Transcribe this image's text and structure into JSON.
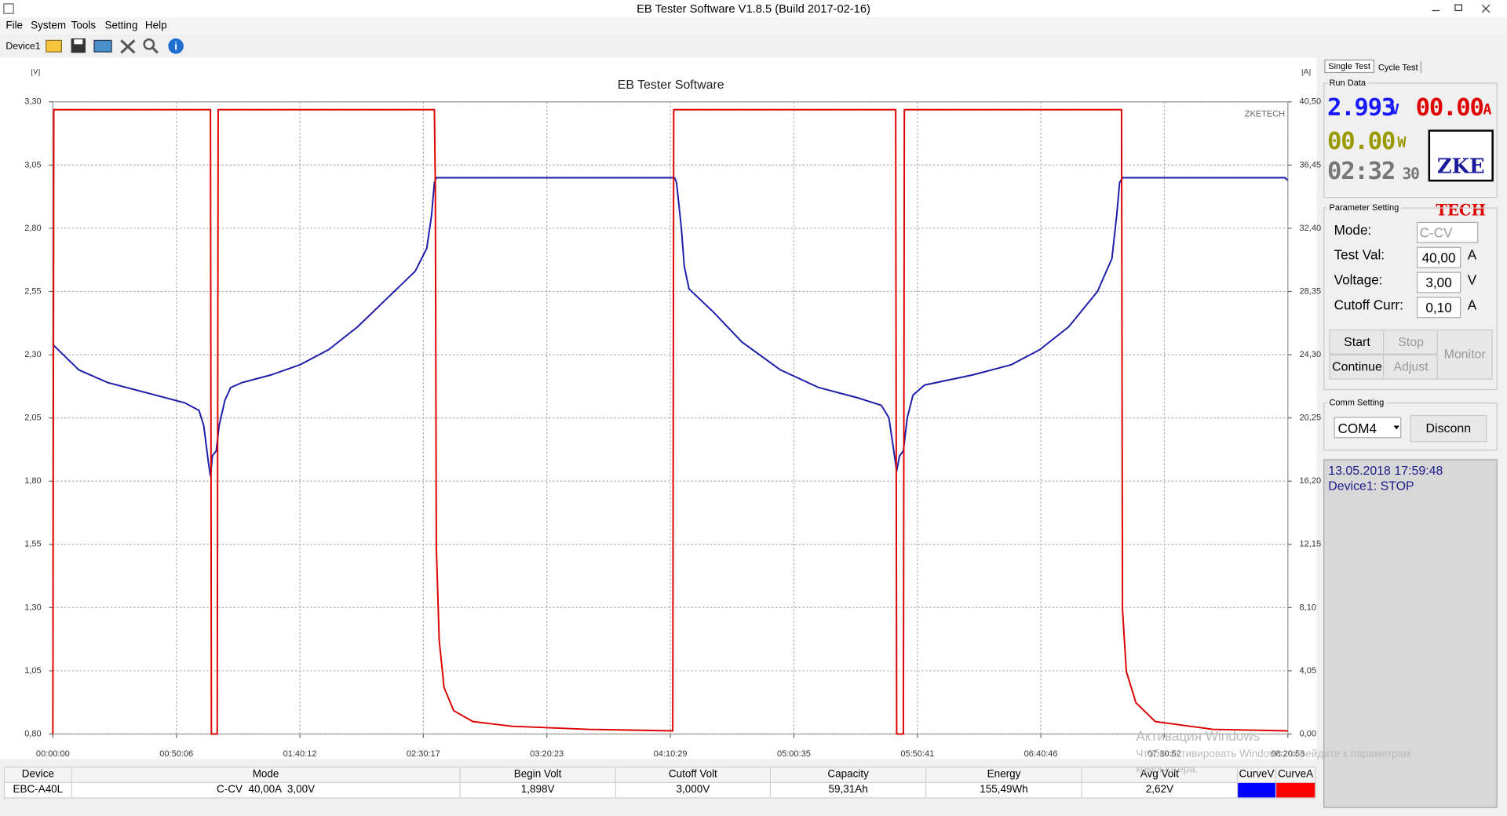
{
  "window": {
    "title": "EB Tester Software V1.8.5 (Build 2017-02-16)",
    "menu": [
      "File",
      "System",
      "Tools",
      "Setting",
      "Help"
    ],
    "device": "Device1"
  },
  "chart_data": {
    "type": "line",
    "title": "EB Tester Software",
    "watermark": "ZKETECH",
    "y_label": "[V]",
    "y2_label": "[A]",
    "grid": true,
    "xlim": [
      0,
      30058
    ],
    "xticks": [
      {
        "value": 0,
        "label": "00:00:00"
      },
      {
        "value": 3006,
        "label": "00:50:06"
      },
      {
        "value": 6012,
        "label": "01:40:12"
      },
      {
        "value": 9017,
        "label": "02:30:17"
      },
      {
        "value": 12023,
        "label": "03:20:23"
      },
      {
        "value": 15029,
        "label": "04:10:29"
      },
      {
        "value": 18035,
        "label": "05:00:35"
      },
      {
        "value": 21041,
        "label": "05:50:41"
      },
      {
        "value": 24046,
        "label": "06:40:46"
      },
      {
        "value": 27052,
        "label": "07:30:52"
      },
      {
        "value": 30058,
        "label": "08:20:58"
      }
    ],
    "ylim": [
      0.8,
      3.3
    ],
    "yticks": [
      {
        "value": 0.8,
        "label": "0,80"
      },
      {
        "value": 1.05,
        "label": "1,05"
      },
      {
        "value": 1.3,
        "label": "1,30"
      },
      {
        "value": 1.55,
        "label": "1,55"
      },
      {
        "value": 1.8,
        "label": "1,80"
      },
      {
        "value": 2.05,
        "label": "2,05"
      },
      {
        "value": 2.3,
        "label": "2,30"
      },
      {
        "value": 2.55,
        "label": "2,55"
      },
      {
        "value": 2.8,
        "label": "2,80"
      },
      {
        "value": 3.05,
        "label": "3,05"
      },
      {
        "value": 3.3,
        "label": "3,30"
      }
    ],
    "y2lim": [
      0,
      40.5
    ],
    "y2ticks": [
      {
        "value": 0,
        "label": "0,00"
      },
      {
        "value": 4.05,
        "label": "4,05"
      },
      {
        "value": 8.1,
        "label": "8,10"
      },
      {
        "value": 12.15,
        "label": "12,15"
      },
      {
        "value": 16.2,
        "label": "16,20"
      },
      {
        "value": 20.25,
        "label": "20,25"
      },
      {
        "value": 24.3,
        "label": "24,30"
      },
      {
        "value": 28.35,
        "label": "28,35"
      },
      {
        "value": 32.4,
        "label": "32,40"
      },
      {
        "value": 36.45,
        "label": "36,45"
      },
      {
        "value": 40.5,
        "label": "40,50"
      }
    ],
    "series": [
      {
        "name": "CurveV",
        "color": "#1c1ca8",
        "x": [
          0,
          632,
          1333,
          2269,
          3204,
          3555,
          3672,
          3789,
          3836,
          3883,
          3976,
          4047,
          4187,
          4327,
          4608,
          5310,
          6011,
          6713,
          7415,
          8116,
          8818,
          9099,
          9216,
          9286,
          9333,
          15133,
          15180,
          15297,
          15367,
          15484,
          16069,
          16771,
          17706,
          18642,
          19578,
          20162,
          20349,
          20466,
          20537,
          20607,
          20700,
          20794,
          20934,
          21215,
          22384,
          23320,
          24021,
          24722,
          25424,
          25775,
          25892,
          25962,
          26033,
          29986,
          30056
        ],
        "values": [
          2.34,
          2.24,
          2.19,
          2.15,
          2.11,
          2.08,
          2.02,
          1.87,
          1.82,
          1.9,
          1.92,
          2.02,
          2.12,
          2.17,
          2.19,
          2.22,
          2.26,
          2.32,
          2.41,
          2.52,
          2.63,
          2.72,
          2.85,
          2.98,
          3.0,
          3.0,
          2.98,
          2.8,
          2.65,
          2.56,
          2.47,
          2.35,
          2.24,
          2.17,
          2.13,
          2.1,
          2.05,
          1.92,
          1.84,
          1.9,
          1.92,
          2.05,
          2.14,
          2.18,
          2.22,
          2.26,
          2.32,
          2.41,
          2.55,
          2.68,
          2.85,
          2.98,
          3.0,
          3.0,
          2.99
        ]
      },
      {
        "name": "CurveA",
        "color": "#dd0000",
        "axis": "y2",
        "x": [
          0,
          23,
          3836,
          3859,
          4000,
          4023,
          9286,
          9309,
          9333,
          9403,
          9520,
          9754,
          10222,
          11157,
          13029,
          15087,
          15111,
          20513,
          20537,
          20700,
          20724,
          26010,
          26033,
          26127,
          26361,
          26829,
          28232,
          30056
        ],
        "values": [
          0,
          40.0,
          40.0,
          0,
          0,
          40.0,
          40.0,
          35,
          12,
          6,
          3,
          1.5,
          0.8,
          0.5,
          0.3,
          0.2,
          40.0,
          40.0,
          0,
          0,
          40.0,
          40.0,
          8,
          4,
          2,
          0.8,
          0.3,
          0.2
        ]
      }
    ]
  },
  "panel": {
    "tabs": [
      "Single Test",
      "Cycle Test"
    ],
    "run_data": {
      "title": "Run Data",
      "voltage": "2.993",
      "voltage_unit": "V",
      "current": "00.00",
      "current_unit": "A",
      "power": "00.00",
      "power_unit": "W",
      "time": "02:32",
      "time_seconds": "30",
      "logo": [
        "ZKE",
        "TECH"
      ]
    },
    "parameters": {
      "title": "Parameter Setting",
      "rows": [
        {
          "label": "Mode:",
          "value": "C-CV",
          "unit": ""
        },
        {
          "label": "Test Val:",
          "value": "40,00",
          "unit": "A"
        },
        {
          "label": "Voltage:",
          "value": "3,00",
          "unit": "V"
        },
        {
          "label": "Cutoff Curr:",
          "value": "0,10",
          "unit": "A"
        }
      ],
      "buttons": [
        "Start",
        "Stop",
        "Continue",
        "Adjust",
        "Monitor"
      ]
    },
    "comm": {
      "title": "Comm Setting",
      "port": "COM4",
      "button": "Disconn"
    },
    "status": [
      "13.05.2018 17:59:48",
      "Device1: STOP"
    ]
  },
  "table": {
    "header": [
      "Device",
      "Mode",
      "Begin Volt",
      "Cutoff Volt",
      "Capacity",
      "Energy",
      "Avg Volt"
    ],
    "row": [
      "EBC-A40L",
      "C-CV  40,00A  3,00V",
      "1,898V",
      "3,000V",
      "59,31Ah",
      "155,49Wh",
      "2,62V"
    ]
  },
  "os_watermark": [
    "Активация Windows",
    "Чтобы активировать Windows, перейдите к параметрам",
    "компьютера."
  ]
}
